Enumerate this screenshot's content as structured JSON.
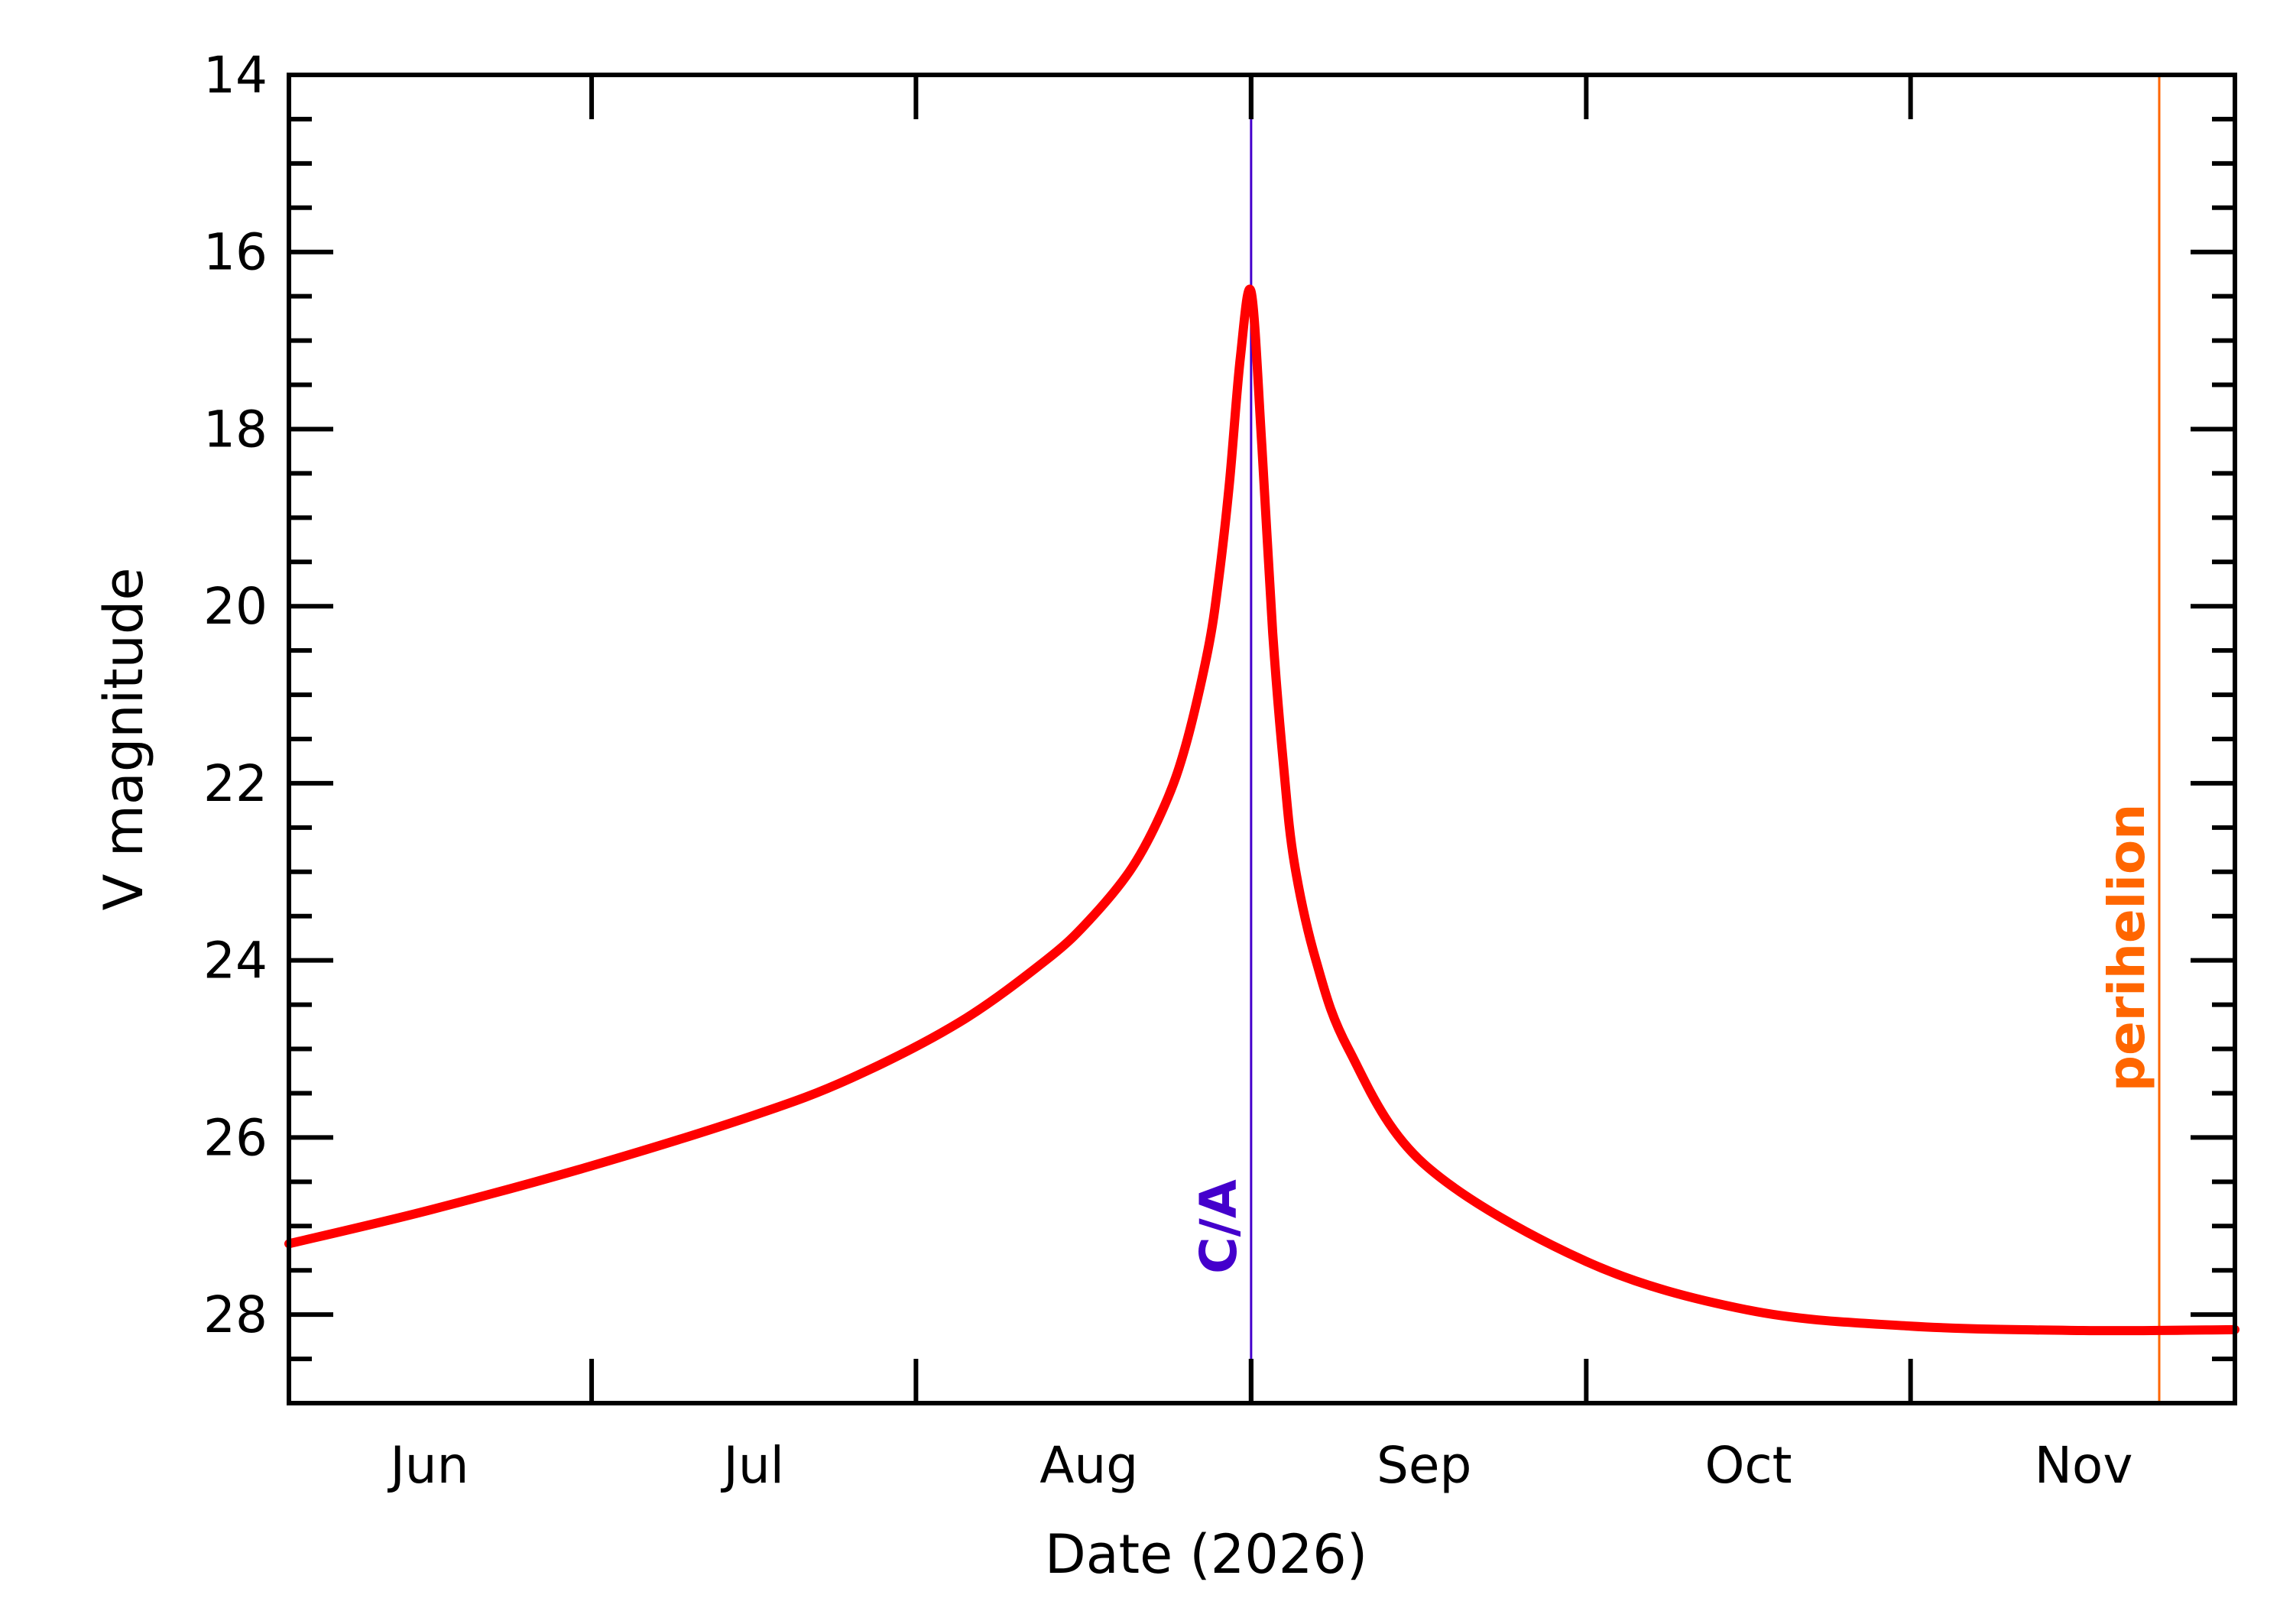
{
  "chart_data": {
    "type": "line",
    "title": "",
    "xlabel": "Date (2026)",
    "ylabel": "V magnitude",
    "x_range": [
      "2026-05-19",
      "2026-11-15"
    ],
    "ylim": [
      29,
      14
    ],
    "y_inverted": true,
    "y_ticks": [
      {
        "value": 14,
        "label": "14"
      },
      {
        "value": 16,
        "label": "16"
      },
      {
        "value": 18,
        "label": "18"
      },
      {
        "value": 20,
        "label": "20"
      },
      {
        "value": 22,
        "label": "22"
      },
      {
        "value": 24,
        "label": "24"
      },
      {
        "value": 26,
        "label": "26"
      },
      {
        "value": 28,
        "label": "28"
      }
    ],
    "y_minor_step": 0.5,
    "x_ticks": [
      {
        "date": "2026-06-01",
        "label": "Jun"
      },
      {
        "date": "2026-07-01",
        "label": "Jul"
      },
      {
        "date": "2026-08-01",
        "label": "Aug"
      },
      {
        "date": "2026-09-01",
        "label": "Sep"
      },
      {
        "date": "2026-10-01",
        "label": "Oct"
      },
      {
        "date": "2026-11-01",
        "label": "Nov"
      }
    ],
    "major_tick_dates": [
      "2026-06-16",
      "2026-07-16",
      "2026-08-16",
      "2026-09-16",
      "2026-10-16"
    ],
    "grid": false,
    "series": [
      {
        "color": "#ff0000",
        "points": [
          {
            "x": "2026-05-19",
            "y": 27.2
          },
          {
            "x": "2026-06-01",
            "y": 26.82
          },
          {
            "x": "2026-06-16",
            "y": 26.32
          },
          {
            "x": "2026-07-01",
            "y": 25.75
          },
          {
            "x": "2026-07-10",
            "y": 25.33
          },
          {
            "x": "2026-07-20",
            "y": 24.7
          },
          {
            "x": "2026-07-28",
            "y": 24.0
          },
          {
            "x": "2026-08-01",
            "y": 23.55
          },
          {
            "x": "2026-08-05",
            "y": 22.95
          },
          {
            "x": "2026-08-08",
            "y": 22.25
          },
          {
            "x": "2026-08-10",
            "y": 21.55
          },
          {
            "x": "2026-08-12",
            "y": 20.5
          },
          {
            "x": "2026-08-13",
            "y": 19.7
          },
          {
            "x": "2026-08-14",
            "y": 18.6
          },
          {
            "x": "2026-08-15",
            "y": 17.2
          },
          {
            "x": "2026-08-16",
            "y": 16.45
          },
          {
            "x": "2026-08-17",
            "y": 18.2
          },
          {
            "x": "2026-08-18",
            "y": 20.3
          },
          {
            "x": "2026-08-19",
            "y": 21.8
          },
          {
            "x": "2026-08-20",
            "y": 22.9
          },
          {
            "x": "2026-08-22",
            "y": 24.0
          },
          {
            "x": "2026-08-25",
            "y": 25.0
          },
          {
            "x": "2026-09-01",
            "y": 26.3
          },
          {
            "x": "2026-09-16",
            "y": 27.4
          },
          {
            "x": "2026-10-01",
            "y": 27.95
          },
          {
            "x": "2026-10-16",
            "y": 28.13
          },
          {
            "x": "2026-11-01",
            "y": 28.18
          },
          {
            "x": "2026-11-15",
            "y": 28.17
          }
        ]
      }
    ],
    "markers": [
      {
        "date": "2026-08-16",
        "label": "C/A",
        "color": "#4400cc"
      },
      {
        "date": "2026-11-08",
        "label": "perihelion",
        "color": "#ff6600"
      }
    ]
  }
}
